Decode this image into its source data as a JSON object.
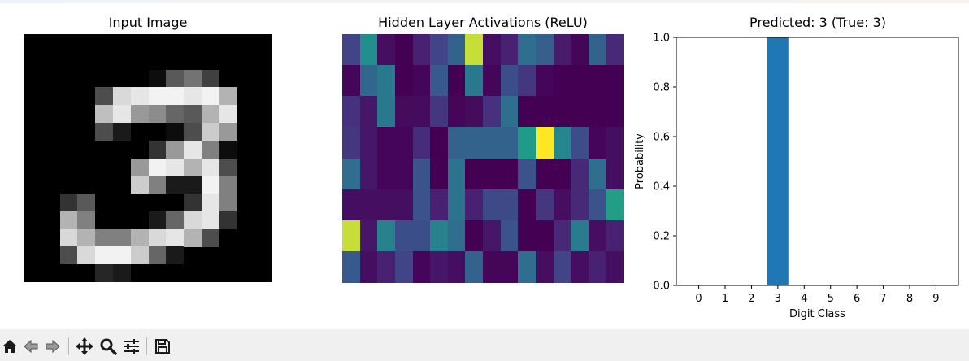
{
  "figure": {
    "titles": {
      "input": "Input Image",
      "hidden": "Hidden Layer Activations (ReLU)",
      "pred": "Predicted: 3 (True: 3)"
    }
  },
  "images": {
    "input_digit": {
      "rows": 14,
      "cols": 14,
      "values": [
        [
          0,
          0,
          0,
          0,
          0,
          0,
          0,
          0,
          0,
          0,
          0,
          0,
          0,
          0
        ],
        [
          0,
          0,
          0,
          0,
          0,
          0,
          0,
          0,
          0,
          0,
          0,
          0,
          0,
          0
        ],
        [
          0,
          0,
          0,
          0,
          0,
          0,
          0,
          0.05,
          0.35,
          0.45,
          0.25,
          0,
          0,
          0
        ],
        [
          0,
          0,
          0,
          0,
          0.3,
          0.85,
          0.9,
          0.95,
          0.95,
          0.9,
          0.95,
          0.7,
          0,
          0
        ],
        [
          0,
          0,
          0,
          0,
          0.75,
          0.9,
          0.6,
          0.55,
          0.4,
          0.35,
          0.7,
          0.9,
          0,
          0
        ],
        [
          0,
          0,
          0,
          0,
          0.3,
          0.1,
          0,
          0,
          0.05,
          0.3,
          0.8,
          0.6,
          0,
          0
        ],
        [
          0,
          0,
          0,
          0,
          0,
          0,
          0,
          0.2,
          0.6,
          0.9,
          0.5,
          0.05,
          0,
          0
        ],
        [
          0,
          0,
          0,
          0,
          0,
          0,
          0.6,
          0.95,
          0.9,
          0.7,
          0.9,
          0.3,
          0,
          0
        ],
        [
          0,
          0,
          0,
          0,
          0,
          0,
          0.8,
          0.5,
          0.1,
          0.1,
          0.95,
          0.5,
          0,
          0
        ],
        [
          0,
          0,
          0.2,
          0.35,
          0,
          0,
          0,
          0,
          0,
          0.2,
          0.9,
          0.5,
          0,
          0
        ],
        [
          0,
          0,
          0.7,
          0.5,
          0,
          0,
          0,
          0.1,
          0.4,
          0.85,
          0.9,
          0.2,
          0,
          0
        ],
        [
          0,
          0,
          0.85,
          0.7,
          0.5,
          0.5,
          0.7,
          0.85,
          0.9,
          0.7,
          0.3,
          0,
          0,
          0
        ],
        [
          0,
          0,
          0.3,
          0.85,
          0.95,
          0.95,
          0.8,
          0.4,
          0.1,
          0,
          0,
          0,
          0,
          0
        ],
        [
          0,
          0,
          0,
          0,
          0.15,
          0.1,
          0,
          0,
          0,
          0,
          0,
          0,
          0,
          0
        ]
      ]
    },
    "hidden_activations": {
      "rows": 8,
      "cols": 16,
      "values": [
        [
          0.25,
          0.62,
          0.05,
          0,
          0.12,
          0.25,
          0.4,
          0.95,
          0.05,
          0.12,
          0.45,
          0.38,
          0.1,
          0.02,
          0.4,
          0.15
        ],
        [
          0.02,
          0.42,
          0.5,
          0,
          0.02,
          0.35,
          0,
          0.5,
          0.02,
          0.3,
          0.2,
          0.02,
          0,
          0,
          0,
          0
        ],
        [
          0.18,
          0.08,
          0.5,
          0.04,
          0.04,
          0.2,
          0.02,
          0.04,
          0.18,
          0.45,
          0,
          0,
          0,
          0,
          0,
          0
        ],
        [
          0.2,
          0.08,
          0.02,
          0.02,
          0.16,
          0,
          0.4,
          0.4,
          0.4,
          0.4,
          0.68,
          1.0,
          0.58,
          0.3,
          0.02,
          0.05
        ],
        [
          0.45,
          0.08,
          0.02,
          0.02,
          0.32,
          0,
          0.48,
          0,
          0,
          0,
          0.32,
          0,
          0,
          0.15,
          0.45,
          0.05
        ],
        [
          0.05,
          0.05,
          0.05,
          0.05,
          0.32,
          0.12,
          0.48,
          0.12,
          0.28,
          0.28,
          0,
          0.2,
          0.05,
          0.15,
          0.32,
          0.7
        ],
        [
          0.95,
          0.08,
          0.55,
          0.3,
          0.3,
          0.55,
          0.45,
          0,
          0.08,
          0.32,
          0,
          0,
          0.15,
          0.52,
          0.05,
          0.12
        ],
        [
          0.35,
          0.05,
          0.12,
          0.25,
          0.02,
          0.08,
          0.05,
          0.4,
          0.02,
          0.02,
          0.45,
          0.05,
          0.25,
          0.05,
          0.12,
          0.05
        ]
      ]
    }
  },
  "chart_data": {
    "type": "bar",
    "title": "Predicted: 3 (True: 3)",
    "xlabel": "Digit Class",
    "ylabel": "Probability",
    "categories": [
      "0",
      "1",
      "2",
      "3",
      "4",
      "5",
      "6",
      "7",
      "8",
      "9"
    ],
    "values": [
      0,
      0,
      0,
      1.0,
      0,
      0,
      0,
      0,
      0,
      0
    ],
    "ylim": [
      0,
      1.0
    ],
    "yticks": [
      "0.0",
      "0.2",
      "0.4",
      "0.6",
      "0.8",
      "1.0"
    ],
    "bar_color": "#1f77b4",
    "grid": false
  },
  "toolbar": {
    "buttons": [
      {
        "name": "home-icon",
        "interactable": true
      },
      {
        "name": "back-arrow-icon",
        "interactable": true
      },
      {
        "name": "forward-arrow-icon",
        "interactable": true
      },
      {
        "name": "pan-move-icon",
        "interactable": true
      },
      {
        "name": "zoom-magnifier-icon",
        "interactable": true
      },
      {
        "name": "configure-subplots-icon",
        "interactable": true
      },
      {
        "name": "save-figure-icon",
        "interactable": true
      }
    ]
  }
}
